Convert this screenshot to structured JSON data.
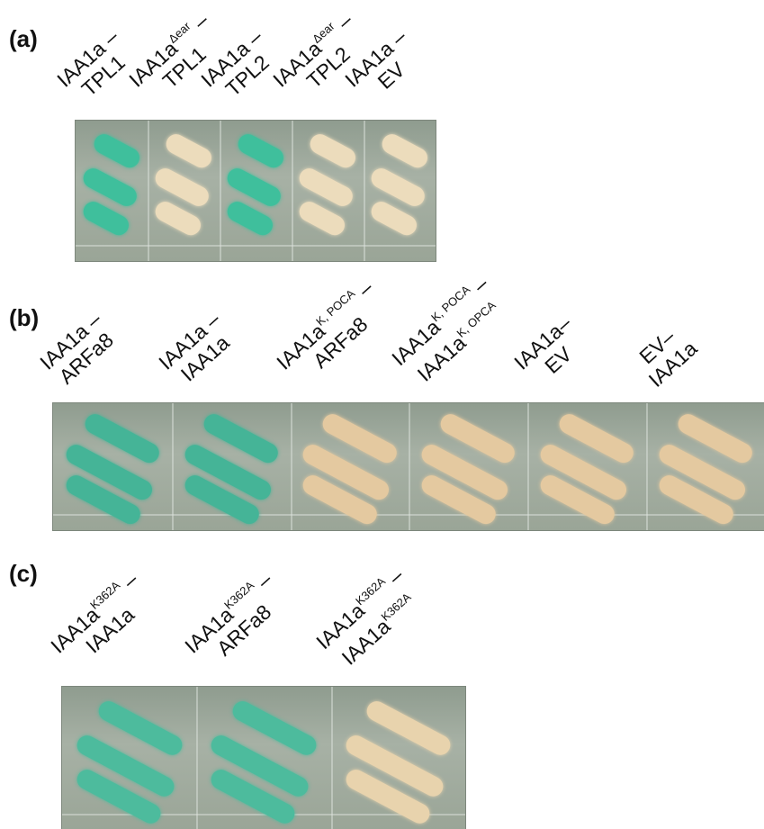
{
  "panels": [
    {
      "label": "(a)",
      "lanes": [
        {
          "streak_color": "#3fbf9c",
          "lines": [
            [
              {
                "text": "IAA1a –"
              }
            ],
            [
              {
                "text": "TPL1"
              }
            ]
          ]
        },
        {
          "streak_color": "#ecdcbc",
          "lines": [
            [
              {
                "text": "IAA1a"
              },
              {
                "sup": "Δear"
              },
              {
                "text": "–"
              }
            ],
            [
              {
                "text": "TPL1"
              }
            ]
          ]
        },
        {
          "streak_color": "#3fbf9c",
          "lines": [
            [
              {
                "text": "IAA1a –"
              }
            ],
            [
              {
                "text": "TPL2"
              }
            ]
          ]
        },
        {
          "streak_color": "#ecdcbc",
          "lines": [
            [
              {
                "text": "IAA1a"
              },
              {
                "sup": "Δear"
              },
              {
                "text": "–"
              }
            ],
            [
              {
                "text": "TPL2"
              }
            ]
          ]
        },
        {
          "streak_color": "#ecdcbc",
          "lines": [
            [
              {
                "text": "IAA1a –"
              }
            ],
            [
              {
                "text": "EV"
              }
            ]
          ]
        }
      ]
    },
    {
      "label": "(b)",
      "lanes": [
        {
          "streak_color": "#45b497",
          "lines": [
            [
              {
                "text": "IAA1a –"
              }
            ],
            [
              {
                "text": "ARFa8"
              }
            ]
          ]
        },
        {
          "streak_color": "#45b497",
          "lines": [
            [
              {
                "text": "IAA1a –"
              }
            ],
            [
              {
                "text": "IAA1a"
              }
            ]
          ]
        },
        {
          "streak_color": "#e4c9a0",
          "lines": [
            [
              {
                "text": "IAA1a"
              },
              {
                "sup": "K, POCA"
              },
              {
                "text": "–"
              }
            ],
            [
              {
                "text": "ARFa8"
              }
            ]
          ]
        },
        {
          "streak_color": "#e4c9a0",
          "lines": [
            [
              {
                "text": "IAA1a"
              },
              {
                "sup": "K, POCA"
              },
              {
                "text": "–"
              }
            ],
            [
              {
                "text": "IAA1a"
              },
              {
                "sup": "K, OPCA"
              }
            ]
          ]
        },
        {
          "streak_color": "#e4c9a0",
          "lines": [
            [
              {
                "text": "IAA1a–"
              }
            ],
            [
              {
                "text": "EV"
              }
            ]
          ]
        },
        {
          "streak_color": "#e4c9a0",
          "lines": [
            [
              {
                "text": "EV–"
              }
            ],
            [
              {
                "text": "IAA1a"
              }
            ]
          ]
        }
      ]
    },
    {
      "label": "(c)",
      "lanes": [
        {
          "streak_color": "#4dbb9d",
          "lines": [
            [
              {
                "text": "IAA1a"
              },
              {
                "sup": "K362A"
              },
              {
                "text": "–"
              }
            ],
            [
              {
                "text": "IAA1a"
              }
            ]
          ]
        },
        {
          "streak_color": "#4dbb9d",
          "lines": [
            [
              {
                "text": "IAA1a"
              },
              {
                "sup": "K362A"
              },
              {
                "text": "–"
              }
            ],
            [
              {
                "text": "ARFa8"
              }
            ]
          ]
        },
        {
          "streak_color": "#e8d3ad",
          "lines": [
            [
              {
                "text": "IAA1a"
              },
              {
                "sup": "K362A"
              },
              {
                "text": "–"
              }
            ],
            [
              {
                "text": "IAA1a"
              },
              {
                "sup": "K362A"
              }
            ]
          ]
        }
      ]
    }
  ]
}
